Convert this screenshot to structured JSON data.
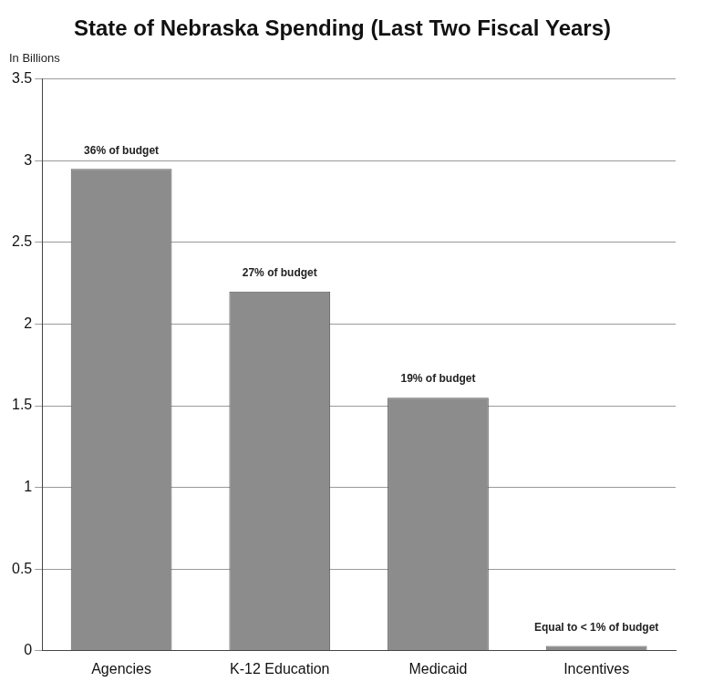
{
  "chart_data": {
    "type": "bar",
    "title": "State of Nebraska Spending (Last Two Fiscal Years)",
    "ylabel": "In Billions",
    "categories": [
      "Agencies",
      "K-12 Education",
      "Medicaid",
      "Incentives"
    ],
    "values": [
      2.95,
      2.2,
      1.55,
      0.03
    ],
    "annotations": [
      "36% of budget",
      "27% of budget",
      "19% of budget",
      "Equal to < 1% of budget"
    ],
    "color": "#8c8c8c",
    "ylim": [
      0,
      3.5
    ],
    "yticks": [
      0,
      0.5,
      1,
      1.5,
      2,
      2.5,
      3,
      3.5
    ],
    "grid": true
  }
}
